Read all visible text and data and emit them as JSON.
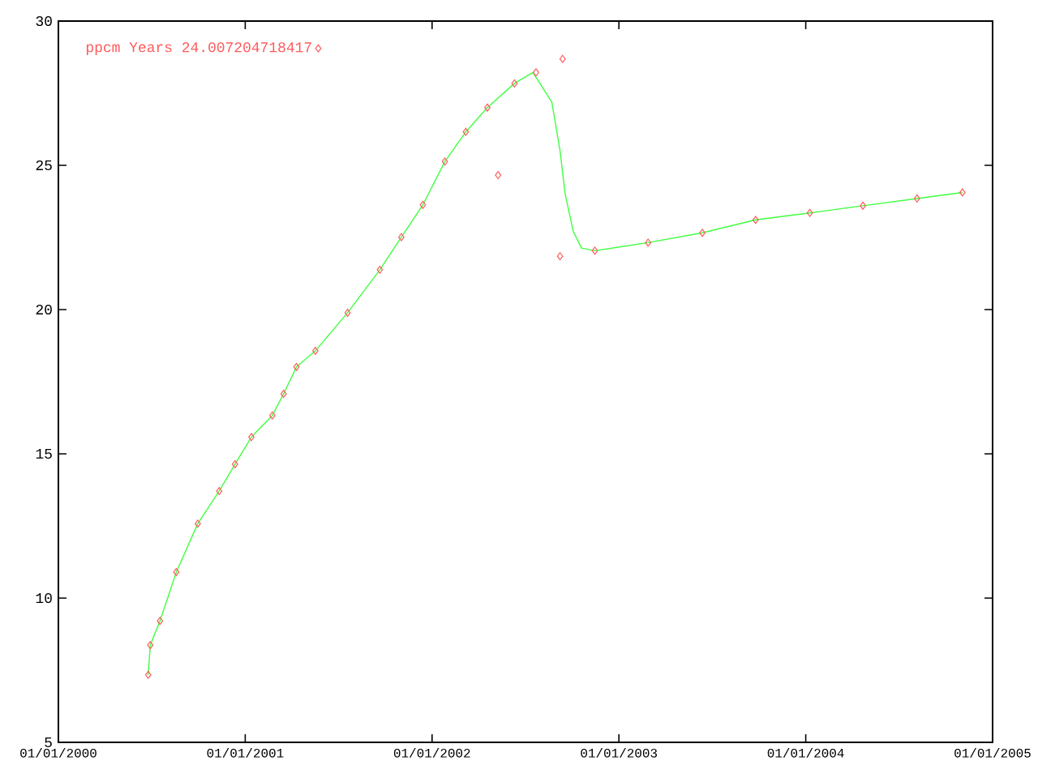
{
  "chart_data": {
    "type": "scatter",
    "xlim": [
      "2000-01-01",
      "2005-01-01"
    ],
    "ylim": [
      5,
      30
    ],
    "xticks": [
      {
        "value": "2000-01-01",
        "label": "01/01/2000"
      },
      {
        "value": "2001-01-01",
        "label": "01/01/2001"
      },
      {
        "value": "2002-01-01",
        "label": "01/01/2002"
      },
      {
        "value": "2003-01-01",
        "label": "01/01/2003"
      },
      {
        "value": "2004-01-01",
        "label": "01/01/2004"
      },
      {
        "value": "2005-01-01",
        "label": "01/01/2005"
      }
    ],
    "yticks": [
      5,
      10,
      15,
      20,
      25,
      30
    ],
    "legend": "top left",
    "grid": false,
    "series": [
      {
        "name": "ppcm Years 24.007204718417",
        "marker": "diamond",
        "color": "#ff5a5a",
        "x": [
          "2000-06-25",
          "2000-06-29",
          "2000-07-18",
          "2000-08-19",
          "2000-09-30",
          "2000-11-11",
          "2000-12-12",
          "2001-01-13",
          "2001-02-23",
          "2001-03-17",
          "2001-04-11",
          "2001-05-18",
          "2001-07-20",
          "2001-09-21",
          "2001-11-02",
          "2001-12-14",
          "2002-01-26",
          "2002-03-08",
          "2002-04-19",
          "2002-06-11",
          "2002-07-23",
          "2002-09-13",
          "2002-05-10",
          "2002-09-08",
          "2002-11-15",
          "2003-02-27",
          "2003-06-13",
          "2003-09-25",
          "2004-01-09",
          "2004-04-22",
          "2004-08-06",
          "2004-11-03"
        ],
        "values": [
          7.34,
          8.37,
          9.21,
          10.9,
          12.58,
          13.71,
          14.64,
          15.58,
          16.33,
          17.08,
          18.01,
          18.57,
          19.89,
          21.38,
          22.51,
          23.63,
          25.13,
          26.16,
          27.0,
          27.84,
          28.22,
          28.69,
          24.66,
          21.85,
          22.04,
          22.32,
          22.66,
          23.11,
          23.35,
          23.6,
          23.85,
          24.06
        ]
      },
      {
        "type": "line",
        "color": "#40ff40",
        "x": [
          "2000-06-25",
          "2000-06-29",
          "2000-07-18",
          "2000-08-19",
          "2000-09-30",
          "2000-11-11",
          "2000-12-12",
          "2001-01-13",
          "2001-02-23",
          "2001-03-17",
          "2001-04-11",
          "2001-05-18",
          "2001-07-20",
          "2001-09-21",
          "2001-11-02",
          "2001-12-14",
          "2002-01-26",
          "2002-03-08",
          "2002-04-19",
          "2002-06-11",
          "2002-07-17",
          "2002-08-23",
          "2002-09-08",
          "2002-09-18",
          "2002-10-04",
          "2002-10-20",
          "2002-11-15",
          "2003-02-27",
          "2003-06-13",
          "2003-09-25",
          "2004-01-09",
          "2004-04-22",
          "2004-08-06",
          "2004-11-03"
        ],
        "values": [
          7.34,
          8.37,
          9.21,
          10.9,
          12.58,
          13.71,
          14.64,
          15.58,
          16.33,
          17.08,
          18.01,
          18.57,
          19.89,
          21.38,
          22.51,
          23.63,
          25.13,
          26.16,
          27.0,
          27.84,
          28.22,
          27.19,
          25.51,
          24.0,
          22.7,
          22.13,
          22.04,
          22.32,
          22.66,
          23.11,
          23.35,
          23.6,
          23.85,
          24.06
        ]
      }
    ]
  }
}
